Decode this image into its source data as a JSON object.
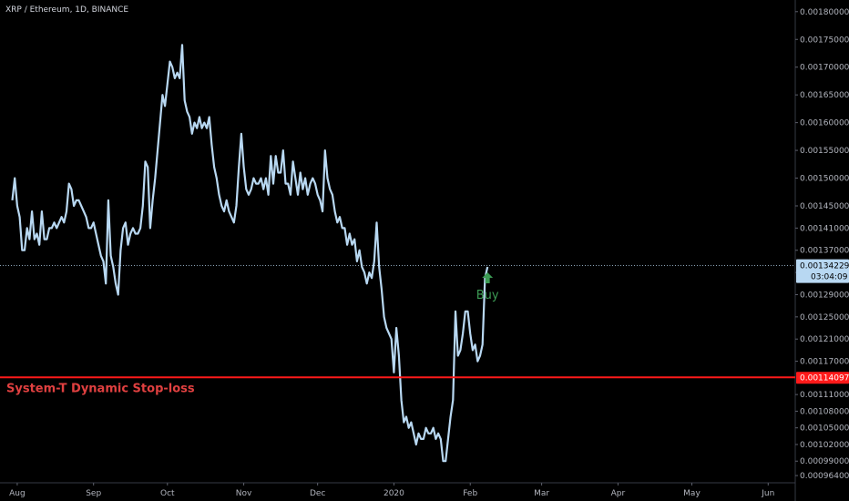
{
  "chart_data": {
    "type": "line",
    "title": "XRP / Ethereum, 1D, BINANCE",
    "xlabel": "",
    "ylabel": "",
    "x_tick_labels": [
      "Aug",
      "Sep",
      "Oct",
      "Nov",
      "Dec",
      "2020",
      "Feb",
      "Mar",
      "Apr",
      "May",
      "Jun"
    ],
    "y_tick_labels": [
      "0.00180000",
      "0.00175000",
      "0.00170000",
      "0.00165000",
      "0.00160000",
      "0.00155000",
      "0.00150000",
      "0.00145000",
      "0.00141000",
      "0.00137000",
      "0.00133000",
      "0.00129000",
      "0.00125000",
      "0.00121000",
      "0.00117000",
      "0.00111000",
      "0.00108000",
      "0.00105000",
      "0.00102000",
      "0.00099000",
      "0.00096400"
    ],
    "y_tick_values": [
      0.0018,
      0.00175,
      0.0017,
      0.00165,
      0.0016,
      0.00155,
      0.0015,
      0.00145,
      0.00141,
      0.00137,
      0.00133,
      0.00129,
      0.00125,
      0.00121,
      0.00117,
      0.00111,
      0.00108,
      0.00105,
      0.00102,
      0.00099,
      0.000964
    ],
    "series": [
      {
        "color": "#b8d8f2",
        "values": [
          0.00146,
          0.0015,
          0.00145,
          0.00143,
          0.00137,
          0.00137,
          0.00141,
          0.00139,
          0.00144,
          0.00139,
          0.0014,
          0.00138,
          0.00144,
          0.00139,
          0.00139,
          0.00141,
          0.00141,
          0.00142,
          0.00141,
          0.00142,
          0.00143,
          0.00142,
          0.00144,
          0.00149,
          0.00148,
          0.00145,
          0.00146,
          0.00146,
          0.00145,
          0.00144,
          0.00143,
          0.00141,
          0.00141,
          0.00142,
          0.0014,
          0.00138,
          0.00136,
          0.00135,
          0.00131,
          0.00146,
          0.00136,
          0.00134,
          0.00131,
          0.00129,
          0.00137,
          0.00141,
          0.00142,
          0.00138,
          0.0014,
          0.00141,
          0.0014,
          0.0014,
          0.00141,
          0.00145,
          0.00153,
          0.00152,
          0.00141,
          0.00146,
          0.0015,
          0.00155,
          0.0016,
          0.00165,
          0.00163,
          0.00167,
          0.00171,
          0.0017,
          0.00168,
          0.00169,
          0.00168,
          0.00174,
          0.00164,
          0.00162,
          0.00161,
          0.00158,
          0.0016,
          0.00159,
          0.00161,
          0.00159,
          0.0016,
          0.00159,
          0.00161,
          0.00156,
          0.00152,
          0.0015,
          0.00147,
          0.00145,
          0.00144,
          0.00146,
          0.00144,
          0.00143,
          0.00142,
          0.00145,
          0.00152,
          0.00158,
          0.00152,
          0.00148,
          0.00147,
          0.00148,
          0.0015,
          0.00149,
          0.00149,
          0.0015,
          0.00148,
          0.0015,
          0.00147,
          0.00154,
          0.00149,
          0.00154,
          0.00151,
          0.00151,
          0.00155,
          0.00149,
          0.00149,
          0.00147,
          0.00153,
          0.0015,
          0.00147,
          0.00151,
          0.00148,
          0.0015,
          0.00147,
          0.00149,
          0.0015,
          0.00149,
          0.00147,
          0.00146,
          0.00144,
          0.00155,
          0.0015,
          0.00148,
          0.00147,
          0.00144,
          0.00142,
          0.00143,
          0.00141,
          0.00141,
          0.00138,
          0.0014,
          0.00138,
          0.00139,
          0.00135,
          0.00137,
          0.00134,
          0.00133,
          0.00131,
          0.00133,
          0.00132,
          0.00135,
          0.00142,
          0.00134,
          0.0013,
          0.00125,
          0.00123,
          0.00122,
          0.00121,
          0.00115,
          0.00123,
          0.00118,
          0.0011,
          0.00106,
          0.00107,
          0.00105,
          0.00106,
          0.00104,
          0.00102,
          0.00104,
          0.00103,
          0.00103,
          0.00105,
          0.00104,
          0.00104,
          0.00105,
          0.00103,
          0.00104,
          0.00103,
          0.00099,
          0.00099,
          0.00103,
          0.00107,
          0.0011,
          0.00126,
          0.00118,
          0.00119,
          0.00122,
          0.00126,
          0.00126,
          0.00122,
          0.00119,
          0.0012,
          0.00117,
          0.00118,
          0.0012,
          0.00132,
          0.00134
        ]
      }
    ],
    "x_range": [
      "2019-07-25",
      "2020-06-12"
    ],
    "ylim": [
      0.000951,
      0.001821
    ],
    "current_price": "0.00134229",
    "countdown": "03:04:09",
    "stoploss": {
      "value": "0.00114097",
      "label": "System-T Dynamic Stop-loss",
      "color": "#ff1a1a"
    },
    "buy_marker": {
      "label": "Buy",
      "color": "#3c9a54"
    },
    "grid": false,
    "legend": "none"
  }
}
